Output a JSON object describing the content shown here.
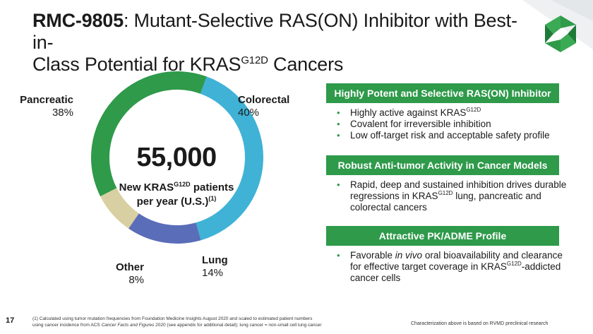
{
  "slide": {
    "title_bold": "RMC-9805",
    "title_rest_1": ": Mutant-Selective RAS(ON) Inhibitor with Best-in-",
    "title_line2_pre": "Class Potential for KRAS",
    "title_sup": "G12D",
    "title_line2_post": " Cancers",
    "page_number": "17",
    "colors": {
      "green": "#2e9a4a",
      "blue": "#3fb2d6",
      "navy": "#5a6db8",
      "beige": "#d8d0a2",
      "text": "#1a1a1a"
    }
  },
  "donut": {
    "center_value": "55,000",
    "center_sub_line1_pre": "New KRAS",
    "center_sub_sup": "G12D",
    "center_sub_line1_post": " patients",
    "center_sub_line2": "per year (U.S.)",
    "center_sub_ref": "(1)"
  },
  "chart_data": {
    "type": "pie",
    "title": "",
    "categories": [
      "Colorectal",
      "Lung",
      "Other",
      "Pancreatic"
    ],
    "values": [
      40,
      14,
      8,
      38
    ],
    "value_labels": [
      "40%",
      "14%",
      "8%",
      "38%"
    ],
    "colors": [
      "#3fb2d6",
      "#5a6db8",
      "#d8d0a2",
      "#2e9a4a"
    ],
    "donut": true,
    "start_angle_deg": 20
  },
  "panels": [
    {
      "heading": "Highly Potent and Selective RAS(ON) Inhibitor",
      "bullets": [
        {
          "pre": "Highly active against KRAS",
          "sup": "G12D",
          "post": ""
        },
        {
          "pre": "Covalent for irreversible inhibition",
          "sup": "",
          "post": ""
        },
        {
          "pre": "Low off-target risk and acceptable safety profile",
          "sup": "",
          "post": ""
        }
      ]
    },
    {
      "heading": "Robust Anti-tumor Activity in Cancer Models",
      "bullets": [
        {
          "pre": "Rapid, deep and sustained inhibition drives durable regressions in KRAS",
          "sup": "G12D",
          "post": " lung, pancreatic and colorectal cancers"
        }
      ]
    },
    {
      "heading": "Attractive PK/ADME Profile",
      "bullets": [
        {
          "pre": "Favorable ",
          "em": "in vivo",
          "mid": " oral bioavailability and clearance for effective target coverage in KRAS",
          "sup": "G12D",
          "post": "-addicted cancer cells"
        }
      ]
    }
  ],
  "footer": {
    "footnote_line1": "(1) Calculated using tumor mutation frequencies from Foundation Medicine Insights August 2020 and scaled to estimated patient numbers",
    "footnote_line2_pre": "using cancer incidence from ACS ",
    "footnote_line2_em": "Cancer Facts and Figures",
    "footnote_line2_post": " 2020 (see appendix for additional detail); lung cancer = non-small cell lung cancer",
    "disclaimer": "Characterization above is based on RVMD preclinical research"
  }
}
